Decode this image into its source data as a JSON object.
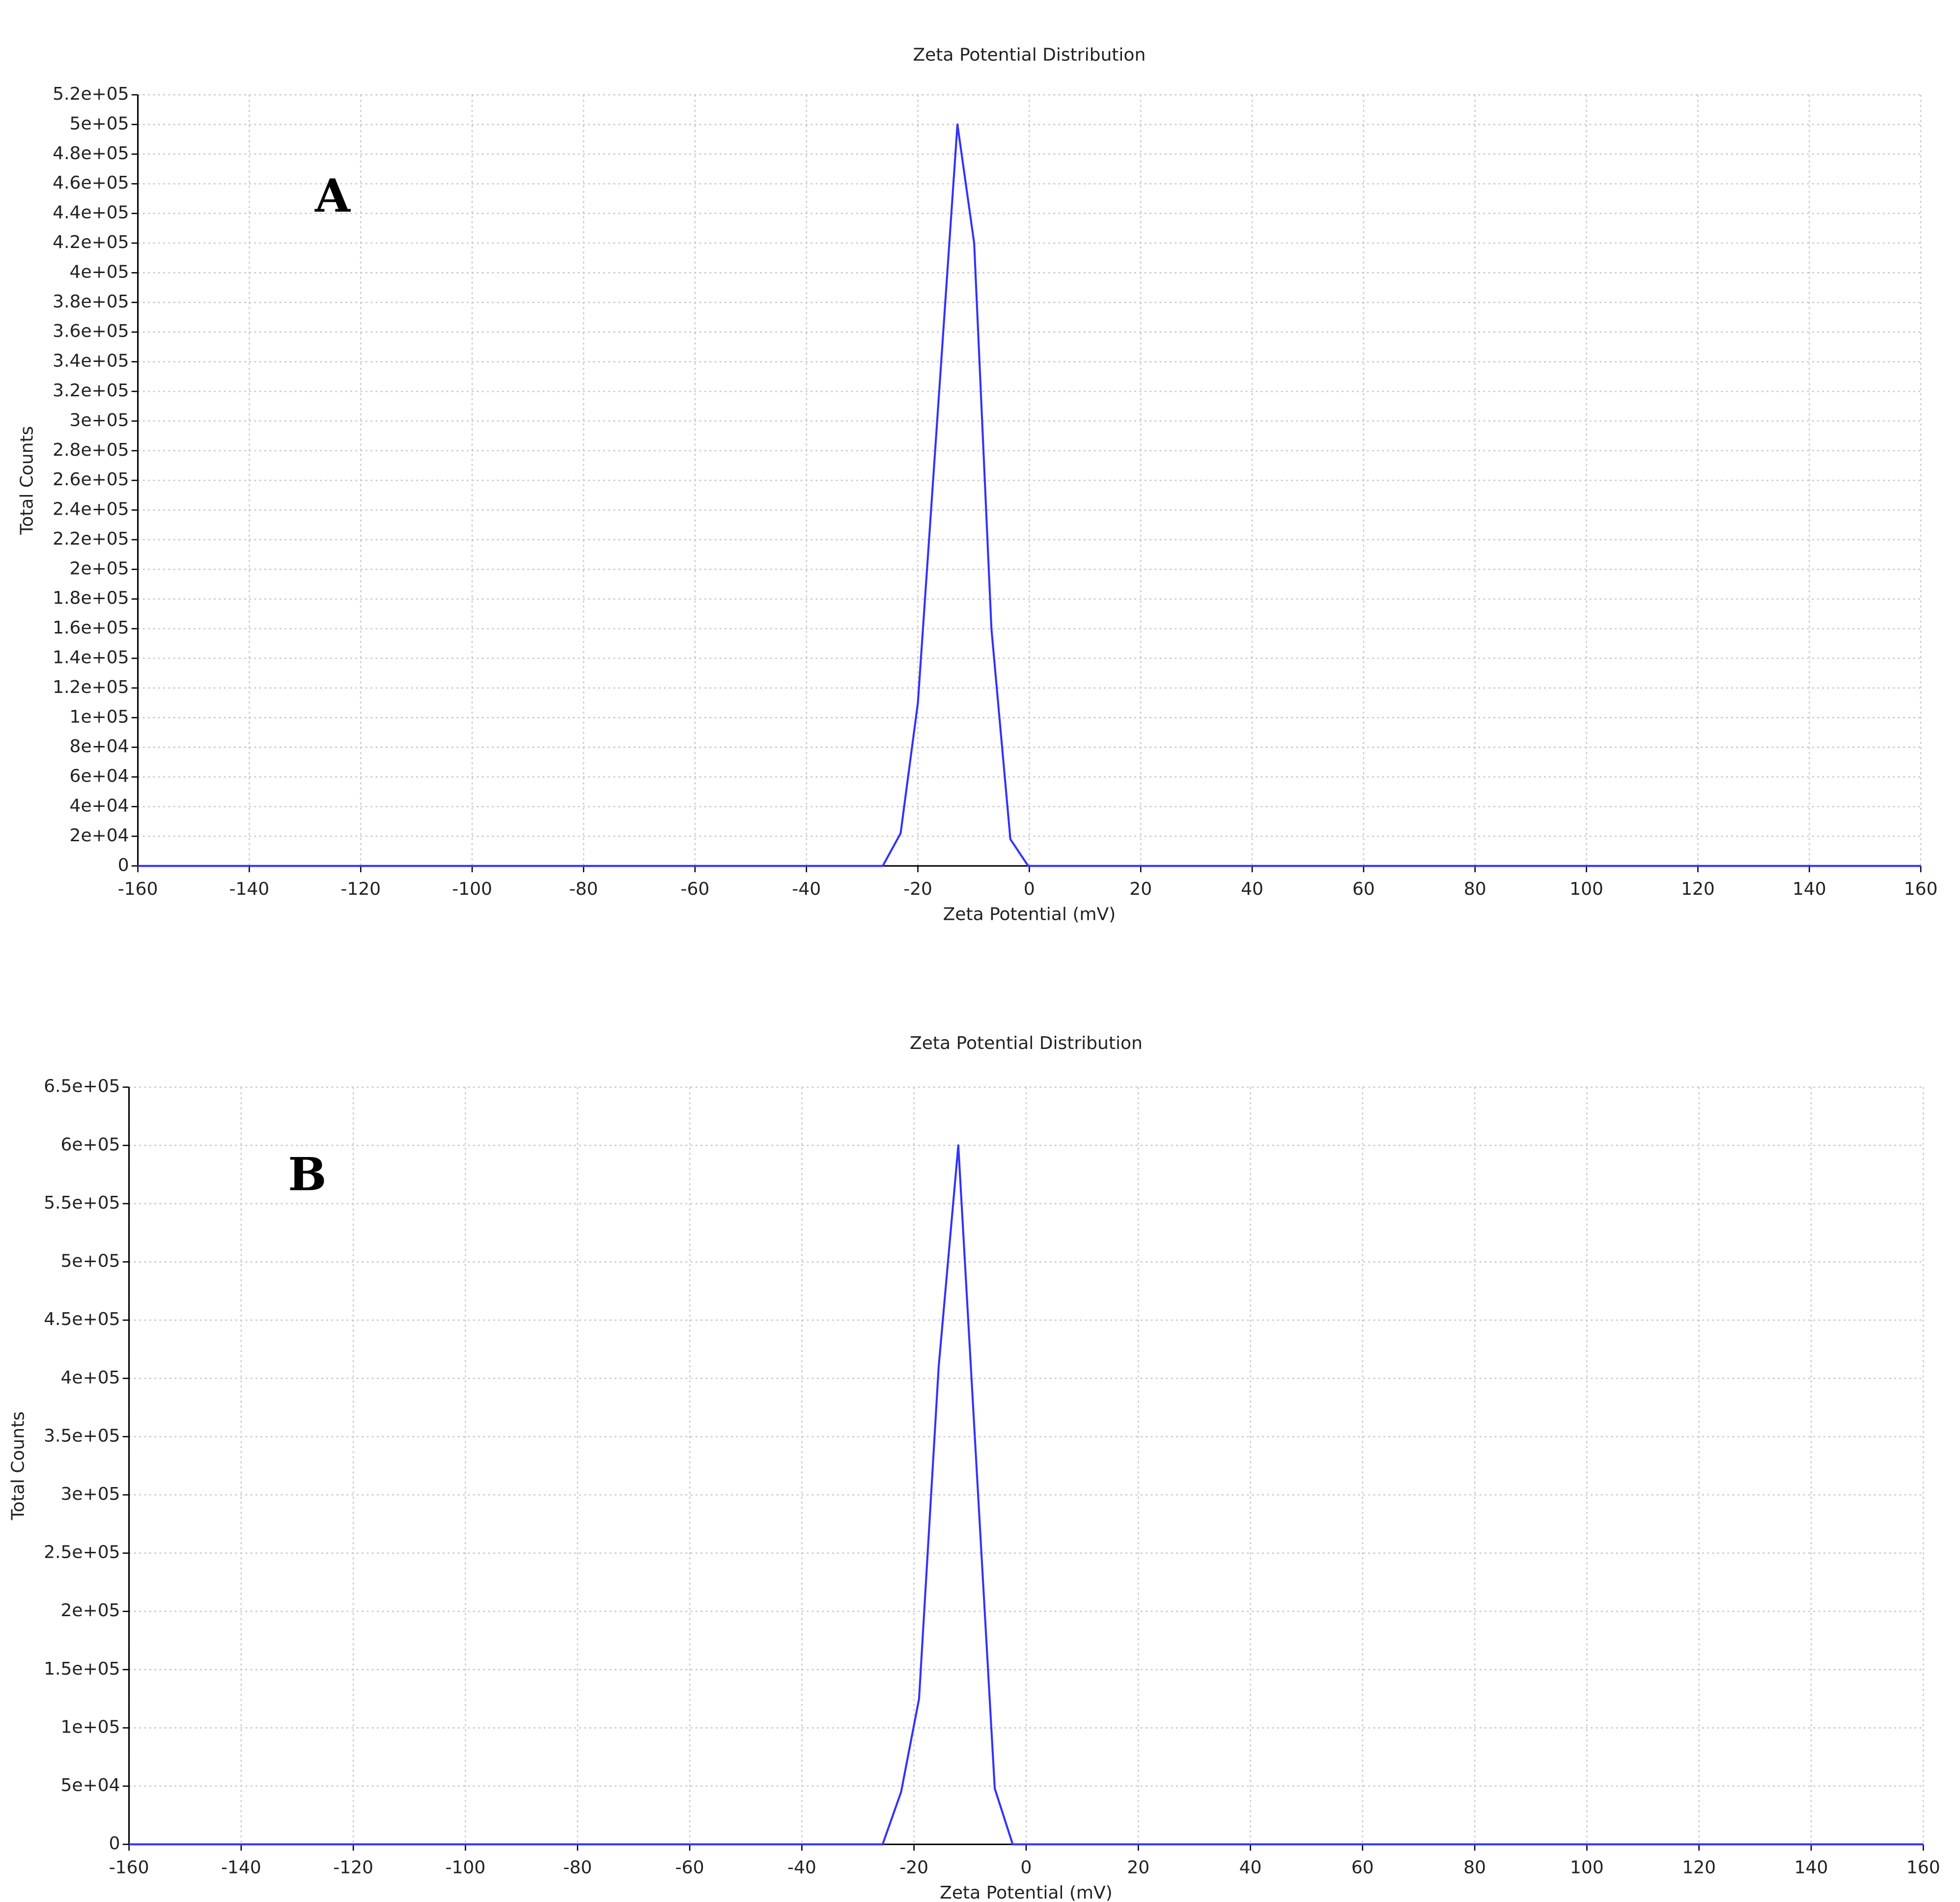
{
  "chart_data": [
    {
      "type": "line",
      "title": "Zeta Potential Distribution",
      "x_label": "Zeta Potential (mV)",
      "y_label": "Total Counts",
      "annotation": "A",
      "color": "#3232ff",
      "grid": true,
      "x": [
        -160,
        -26.3,
        -23.1,
        -20.0,
        -12.9,
        -9.9,
        -6.8,
        -3.4,
        -0.2,
        160
      ],
      "values": [
        0,
        0,
        22000,
        110000,
        500000,
        420000,
        160000,
        18000,
        0,
        0
      ],
      "xlim": [
        -160,
        160
      ],
      "xticks": [
        -160,
        -140,
        -120,
        -100,
        -80,
        -60,
        -40,
        -20,
        0,
        20,
        40,
        60,
        80,
        100,
        120,
        140,
        160
      ],
      "ylim": [
        0,
        520000
      ],
      "yticks": [
        0,
        {
          "value": 20000,
          "label": "2e+04"
        },
        {
          "value": 40000,
          "label": "4e+04"
        },
        {
          "value": 60000,
          "label": "6e+04"
        },
        {
          "value": 80000,
          "label": "8e+04"
        },
        {
          "value": 100000,
          "label": "1e+05"
        },
        {
          "value": 120000,
          "label": "1.2e+05"
        },
        {
          "value": 140000,
          "label": "1.4e+05"
        },
        {
          "value": 160000,
          "label": "1.6e+05"
        },
        {
          "value": 180000,
          "label": "1.8e+05"
        },
        {
          "value": 200000,
          "label": "2e+05"
        },
        {
          "value": 220000,
          "label": "2.2e+05"
        },
        {
          "value": 240000,
          "label": "2.4e+05"
        },
        {
          "value": 260000,
          "label": "2.6e+05"
        },
        {
          "value": 280000,
          "label": "2.8e+05"
        },
        {
          "value": 300000,
          "label": "3e+05"
        },
        {
          "value": 320000,
          "label": "3.2e+05"
        },
        {
          "value": 340000,
          "label": "3.4e+05"
        },
        {
          "value": 360000,
          "label": "3.6e+05"
        },
        {
          "value": 380000,
          "label": "3.8e+05"
        },
        {
          "value": 400000,
          "label": "4e+05"
        },
        {
          "value": 420000,
          "label": "4.2e+05"
        },
        {
          "value": 440000,
          "label": "4.4e+05"
        },
        {
          "value": 460000,
          "label": "4.6e+05"
        },
        {
          "value": 480000,
          "label": "4.8e+05"
        },
        {
          "value": 500000,
          "label": "5e+05"
        },
        {
          "value": 520000,
          "label": "5.2e+05"
        }
      ]
    },
    {
      "type": "line",
      "title": "Zeta Potential Distribution",
      "x_label": "Zeta Potential (mV)",
      "y_label": "Total Counts",
      "annotation": "B",
      "color": "#3232ff",
      "grid": true,
      "x": [
        -160,
        -25.6,
        -22.3,
        -19.1,
        -15.6,
        -12.1,
        -5.6,
        -2.4,
        160
      ],
      "values": [
        0,
        0,
        45000,
        125000,
        410000,
        600000,
        48000,
        0,
        0
      ],
      "xlim": [
        -160,
        160
      ],
      "xticks": [
        -160,
        -140,
        -120,
        -100,
        -80,
        -60,
        -40,
        -20,
        0,
        20,
        40,
        60,
        80,
        100,
        120,
        140,
        160
      ],
      "ylim": [
        0,
        650000
      ],
      "yticks": [
        0,
        {
          "value": 50000,
          "label": "5e+04"
        },
        {
          "value": 100000,
          "label": "1e+05"
        },
        {
          "value": 150000,
          "label": "1.5e+05"
        },
        {
          "value": 200000,
          "label": "2e+05"
        },
        {
          "value": 250000,
          "label": "2.5e+05"
        },
        {
          "value": 300000,
          "label": "3e+05"
        },
        {
          "value": 350000,
          "label": "3.5e+05"
        },
        {
          "value": 400000,
          "label": "4e+05"
        },
        {
          "value": 450000,
          "label": "4.5e+05"
        },
        {
          "value": 500000,
          "label": "5e+05"
        },
        {
          "value": 550000,
          "label": "5.5e+05"
        },
        {
          "value": 600000,
          "label": "6e+05"
        },
        {
          "value": 650000,
          "label": "6.5e+05"
        }
      ]
    }
  ]
}
